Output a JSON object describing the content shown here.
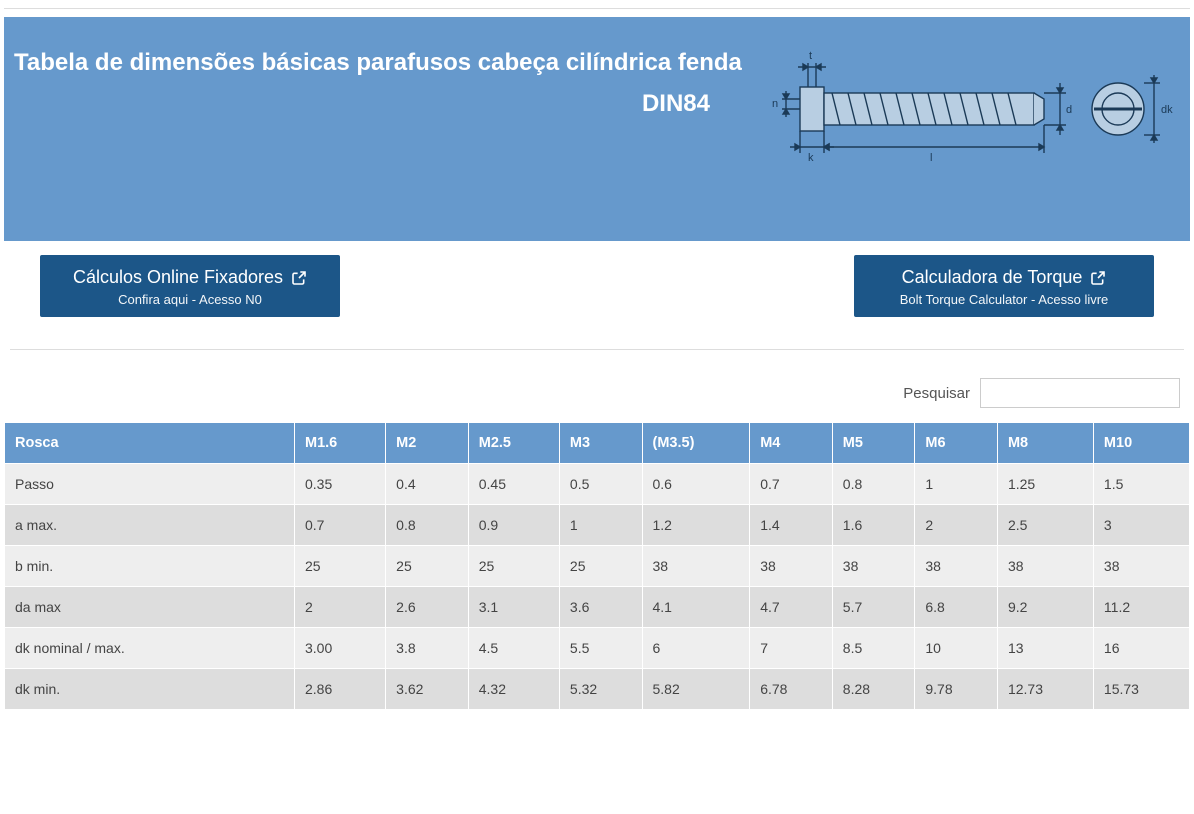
{
  "hero": {
    "title": "Tabela de dimensões básicas parafusos cabeça cilíndrica fenda",
    "subtitle": "DIN84",
    "diagram": {
      "labels": {
        "t": "t",
        "n": "n",
        "k": "k",
        "l": "l",
        "d": "d",
        "dk": "dk"
      },
      "stroke_color": "#1b3a57",
      "fill_color": "#6699cc"
    },
    "background_color": "#6699cc",
    "text_color": "#ffffff"
  },
  "buttons": {
    "left": {
      "title": "Cálculos Online Fixadores",
      "subtitle": "Confira aqui - Acesso N0"
    },
    "right": {
      "title": "Calculadora de Torque",
      "subtitle": "Bolt Torque Calculator - Acesso livre"
    },
    "background_color": "#1c5688",
    "text_color": "#ffffff"
  },
  "search": {
    "label": "Pesquisar",
    "value": ""
  },
  "table": {
    "header_bg": "#6699cc",
    "header_fg": "#ffffff",
    "row_odd_bg": "#eeeeee",
    "row_even_bg": "#dddddd",
    "columns": [
      "Rosca",
      "M1.6",
      "M2",
      "M2.5",
      "M3",
      "(M3.5)",
      "M4",
      "M5",
      "M6",
      "M8",
      "M10"
    ],
    "rows": [
      [
        "Passo",
        "0.35",
        "0.4",
        "0.45",
        "0.5",
        "0.6",
        "0.7",
        "0.8",
        "1",
        "1.25",
        "1.5"
      ],
      [
        "a  max.",
        "0.7",
        "0.8",
        "0.9",
        "1",
        "1.2",
        "1.4",
        "1.6",
        "2",
        "2.5",
        "3"
      ],
      [
        "b min.",
        "25",
        "25",
        "25",
        "25",
        "38",
        "38",
        "38",
        "38",
        "38",
        "38"
      ],
      [
        "da max",
        "2",
        "2.6",
        "3.1",
        "3.6",
        "4.1",
        "4.7",
        "5.7",
        "6.8",
        "9.2",
        "11.2"
      ],
      [
        "dk nominal / max.",
        "3.00",
        "3.8",
        "4.5",
        "5.5",
        "6",
        "7",
        "8.5",
        "10",
        "13",
        "16"
      ],
      [
        "dk min.",
        "2.86",
        "3.62",
        "4.32",
        "5.32",
        "5.82",
        "6.78",
        "8.28",
        "9.78",
        "12.73",
        "15.73"
      ]
    ]
  }
}
